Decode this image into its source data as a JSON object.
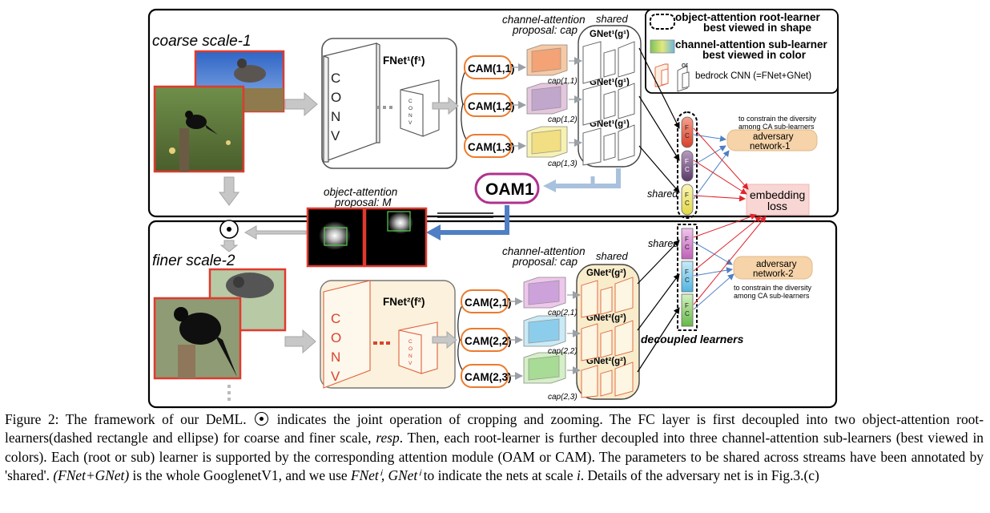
{
  "diagram": {
    "coarse_label": "coarse scale-1",
    "finer_label": "finer scale-2",
    "conv_letters": [
      "C",
      "O",
      "N",
      "V"
    ],
    "fnet1_label": "FNet¹(f¹)",
    "fnet2_label": "FNet²(f²)",
    "ca_proposal_top": [
      "channel-attention",
      "proposal: cap"
    ],
    "ca_proposal_bottom": [
      "channel-attention",
      "proposal: cap"
    ],
    "shared_label": "shared",
    "cams_top": [
      "CAM(1,1)",
      "CAM(1,2)",
      "CAM(1,3)"
    ],
    "cams_bottom": [
      "CAM(2,1)",
      "CAM(2,2)",
      "CAM(2,3)"
    ],
    "caps_top": [
      "cap(1,1)",
      "cap(1,2)",
      "cap(1,3)"
    ],
    "caps_bottom": [
      "cap(2,1)",
      "cap(2,2)",
      "cap(2,3)"
    ],
    "gnet_top": [
      "GNet¹(g¹)",
      "GNet¹(g¹)",
      "GNet¹(g¹)"
    ],
    "gnet_bottom": [
      "GNet²(g²)",
      "GNet²(g²)",
      "GNet²(g²)"
    ],
    "oam_label": "OAM1",
    "oa_proposal": [
      "object-attention",
      "proposal: M"
    ],
    "legend": {
      "oa_root": "object-attention root-learner",
      "oa_root_sub": "best viewed in shape",
      "ca_sub": "channel-attention sub-learner",
      "ca_sub_sub": "best viewed in color",
      "or_text": "or",
      "bedrock": "bedrock CNN (=FNet+GNet)"
    },
    "fc_letters": "FC",
    "adversary1": [
      "adversary",
      "network-1"
    ],
    "adversary2": [
      "adversary",
      "network-2"
    ],
    "constrain_text": [
      "to constrain the diversity",
      "among CA sub-learners"
    ],
    "embedding_loss": [
      "embedding",
      "loss"
    ],
    "decoupled_learners": "decoupled learners",
    "colors": {
      "coarse_fc": [
        "#e7533a",
        "#6e4a78",
        "#e8e25a"
      ],
      "finer_fc": [
        "#c96fc3",
        "#69c3e6",
        "#7bc85a"
      ],
      "oam_border": "#b0328e",
      "cam_border": "#ec7b2c",
      "red_arrow": "#e0232b",
      "blue_arrow": "#4f7fc4",
      "adversary_fill": "#f6d3a8",
      "loss_fill": "#f8d6d4"
    }
  },
  "caption": {
    "fig": "Figure 2:",
    "s1": "The framework of our DeML.",
    "s2": "indicates the joint operation of cropping and zooming. The FC layer is first decoupled into two object-attention root-learners(dashed rectangle and ellipse) for coarse and finer scale,",
    "resp": "resp",
    "s3": ". Then, each root-learner is further decoupled into three channel-attention sub-learners (best viewed in colors). Each (root or sub) learner is supported by the corresponding attention module (OAM or CAM). The parameters to be shared across streams have been annotated by 'shared'.",
    "math1": "(FNet+GNet)",
    "s4": "is the whole GooglenetV1, and we use",
    "math2": "FNetⁱ, GNetⁱ",
    "s5": "to indicate the nets at scale",
    "math3": "i",
    "s6": ". Details of the adversary net is in Fig.3.(c)"
  }
}
